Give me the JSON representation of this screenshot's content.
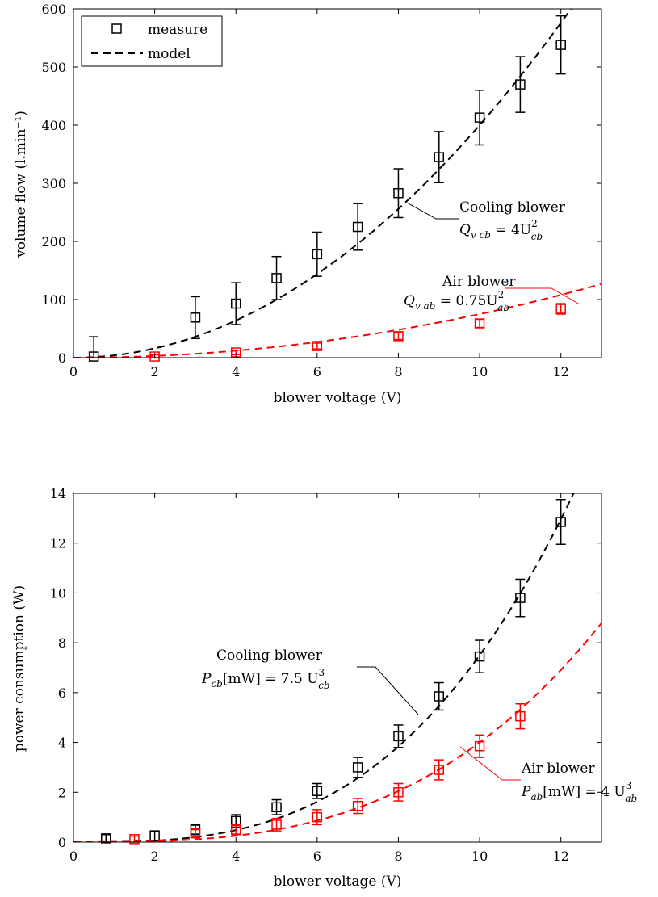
{
  "chart_data": [
    {
      "type": "scatter",
      "xlabel": "blower voltage (V)",
      "ylabel": "volume flow (l.min⁻¹)",
      "xlim": [
        0,
        13
      ],
      "ylim": [
        0,
        600
      ],
      "xticks": [
        "0",
        "2",
        "4",
        "6",
        "8",
        "10",
        "12"
      ],
      "yticks": [
        "0",
        "100",
        "200",
        "300",
        "400",
        "500",
        "600"
      ],
      "legend": {
        "placement": "top-left",
        "entries": [
          "measure",
          "model"
        ]
      },
      "grid": false,
      "series": [
        {
          "name": "Cooling blower",
          "color": "#000000",
          "marker": "square",
          "x": [
            0.5,
            3,
            4,
            5,
            6,
            7,
            8,
            9,
            10,
            11,
            12
          ],
          "y": [
            2,
            69,
            93,
            137,
            178,
            225,
            283,
            345,
            413,
            470,
            538
          ],
          "err": [
            34,
            36,
            36,
            37,
            38,
            40,
            42,
            44,
            47,
            48,
            50
          ],
          "model": {
            "formula": "Q = 4 U^2",
            "coef": 4,
            "power": 2
          }
        },
        {
          "name": "Air blower",
          "color": "#ff0000",
          "marker": "square",
          "x": [
            2,
            4,
            6,
            8,
            10,
            12
          ],
          "y": [
            2,
            9,
            20,
            37,
            59,
            84
          ],
          "err": [
            3,
            4,
            5,
            6,
            7,
            9
          ],
          "model": {
            "formula": "Q = 0.75 U^2",
            "coef": 0.75,
            "power": 2
          }
        }
      ],
      "annotations": [
        {
          "line1": "Cooling blower",
          "line2_base": "Q",
          "line2_sub": "v cb",
          "line2_rest": " = 4U",
          "line2_sup": "2",
          "line2_sub2": "cb",
          "color": "#000000"
        },
        {
          "line1": "Air blower",
          "line2_base": "Q",
          "line2_sub": "v ab",
          "line2_rest": " = 0.75U",
          "line2_sup": "2",
          "line2_sub2": "ab",
          "color": "#000000"
        }
      ]
    },
    {
      "type": "scatter",
      "xlabel": "blower voltage (V)",
      "ylabel": "power consumption (W)",
      "xlim": [
        0,
        13
      ],
      "ylim": [
        0,
        14
      ],
      "xticks": [
        "0",
        "2",
        "4",
        "6",
        "8",
        "10",
        "12"
      ],
      "yticks": [
        "0",
        "2",
        "4",
        "6",
        "8",
        "10",
        "12",
        "14"
      ],
      "grid": false,
      "series": [
        {
          "name": "Cooling blower",
          "color": "#000000",
          "marker": "square",
          "x": [
            0.8,
            2,
            3,
            4,
            5,
            6,
            7,
            8,
            9,
            10,
            11,
            12
          ],
          "y": [
            0.15,
            0.25,
            0.5,
            0.85,
            1.4,
            2.05,
            3.0,
            4.25,
            5.85,
            7.45,
            9.8,
            12.85
          ],
          "err": [
            0.15,
            0.2,
            0.2,
            0.25,
            0.3,
            0.3,
            0.4,
            0.45,
            0.55,
            0.65,
            0.75,
            0.9
          ],
          "model": {
            "formula": "P[mW] = 7.5 U^3",
            "coef": 0.0075,
            "power": 3
          }
        },
        {
          "name": "Air blower",
          "color": "#ff0000",
          "marker": "square",
          "x": [
            1.5,
            3,
            4,
            5,
            6,
            7,
            8,
            9,
            10,
            11
          ],
          "y": [
            0.12,
            0.35,
            0.5,
            0.7,
            1.0,
            1.45,
            2.0,
            2.9,
            3.85,
            5.05
          ],
          "err": [
            0.12,
            0.15,
            0.2,
            0.25,
            0.3,
            0.3,
            0.35,
            0.4,
            0.45,
            0.5
          ],
          "model": {
            "formula": "P[mW] = 4 U^3",
            "coef": 0.004,
            "power": 3
          }
        }
      ],
      "annotations": [
        {
          "line1": "Cooling blower",
          "line2_base": "P",
          "line2_sub": "cb",
          "line2_rest": "[mW] = 7.5 U",
          "line2_sup": "3",
          "line2_sub2": "cb",
          "color": "#000000"
        },
        {
          "line1": "Air blower",
          "line2_base": "P",
          "line2_sub": "ab",
          "line2_rest": "[mW] = 4 U",
          "line2_sup": "3",
          "line2_sub2": "ab",
          "color": "#000000"
        }
      ]
    }
  ],
  "colors": {
    "measure_black": "#000000",
    "air_red": "#ff0000",
    "axis": "#000000"
  }
}
